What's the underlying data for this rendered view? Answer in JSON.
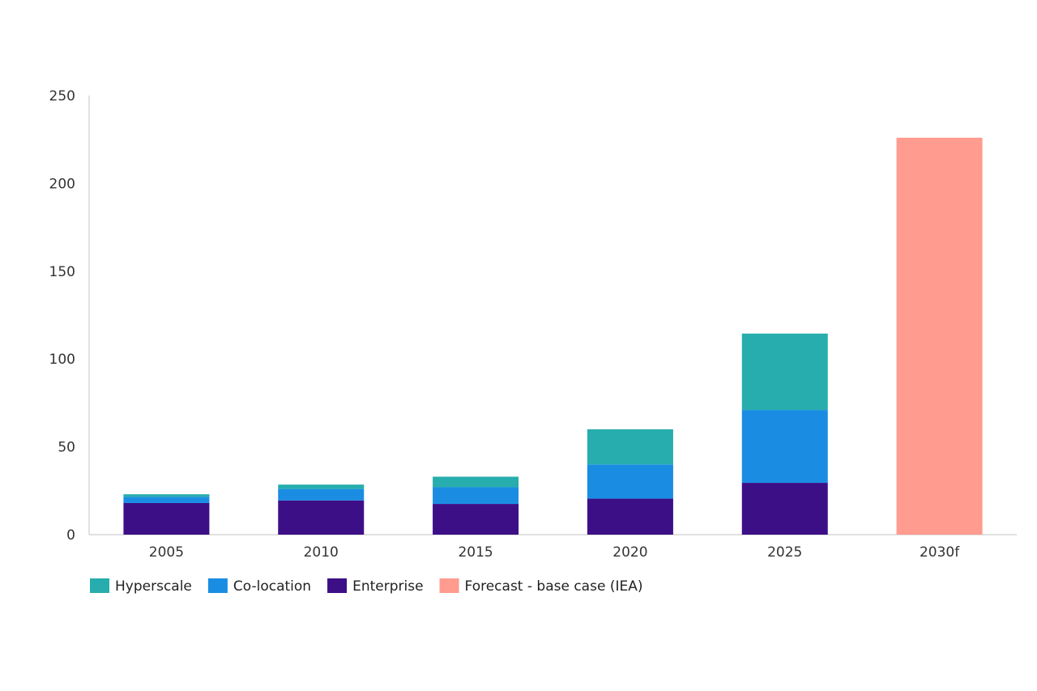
{
  "chart_data": {
    "type": "bar",
    "stacked": true,
    "title": "",
    "xlabel": "",
    "ylabel": "",
    "ylim": [
      0,
      250
    ],
    "yticks": [
      0,
      50,
      100,
      150,
      200,
      250
    ],
    "grid": false,
    "legend_position": "bottom-left",
    "categories": [
      "2005",
      "2010",
      "2015",
      "2020",
      "2025",
      "2030f"
    ],
    "series": [
      {
        "name": "Enterprise",
        "color": "#3d0f87",
        "values": [
          18,
          19.5,
          17.5,
          20.5,
          29.5,
          null
        ]
      },
      {
        "name": "Co-location",
        "color": "#1a8de3",
        "values": [
          3.5,
          6.5,
          9.5,
          19.5,
          41.5,
          null
        ]
      },
      {
        "name": "Hyperscale",
        "color": "#27adad",
        "values": [
          1.5,
          2.5,
          6,
          20,
          43.5,
          null
        ]
      },
      {
        "name": "Forecast - base case (IEA)",
        "color": "#ff9b8f",
        "values": [
          null,
          null,
          null,
          null,
          null,
          226
        ]
      }
    ],
    "legend_order": [
      "Hyperscale",
      "Co-location",
      "Enterprise",
      "Forecast - base case (IEA)"
    ]
  }
}
